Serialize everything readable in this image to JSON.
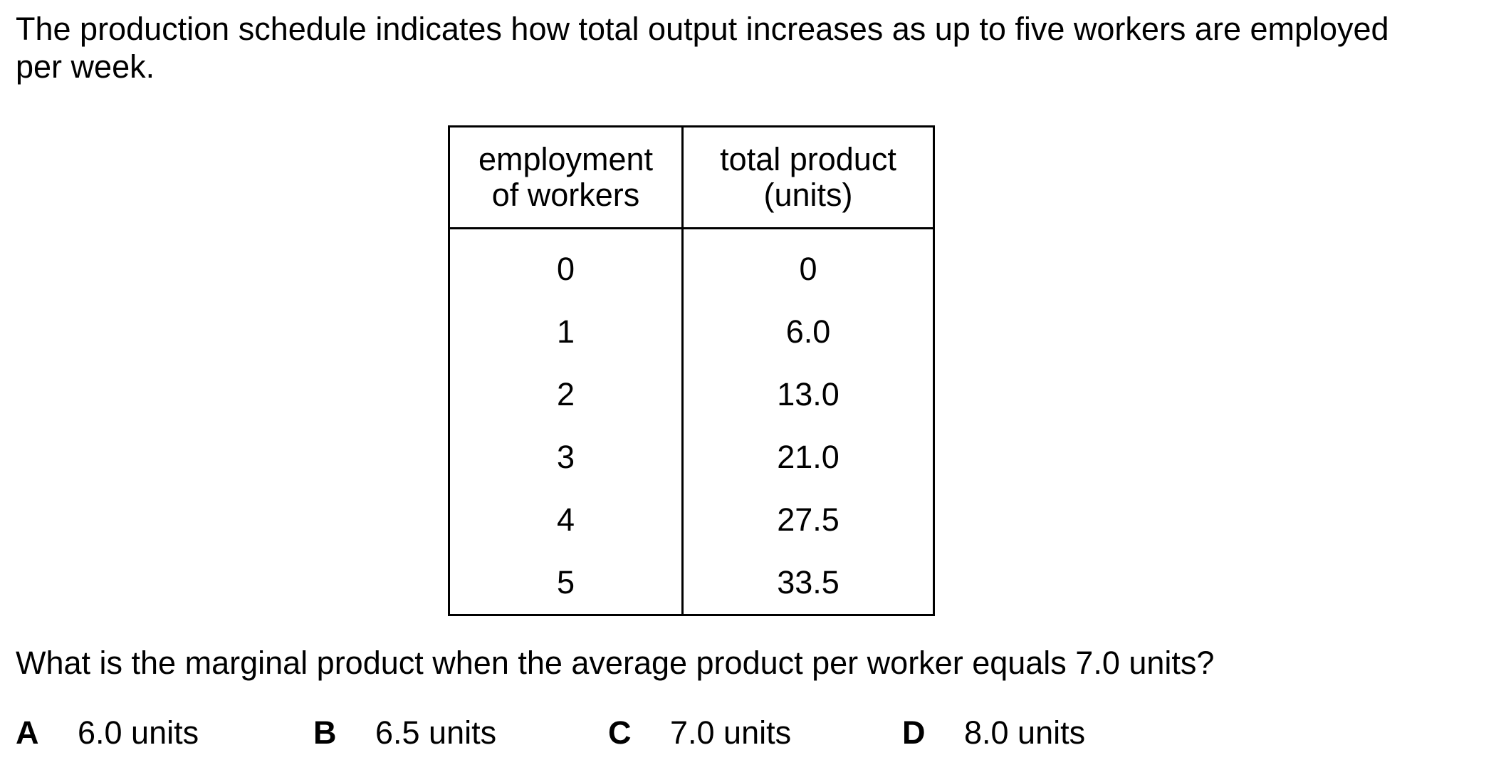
{
  "intro": {
    "line1": "The production schedule indicates how total output increases as up to five workers are employed",
    "line2": "per week."
  },
  "table": {
    "headers": {
      "employment_line1": "employment",
      "employment_line2": "of workers",
      "product_line1": "total product",
      "product_line2": "(units)"
    },
    "rows": [
      {
        "workers": "0",
        "total": "0"
      },
      {
        "workers": "1",
        "total": "6.0"
      },
      {
        "workers": "2",
        "total": "13.0"
      },
      {
        "workers": "3",
        "total": "21.0"
      },
      {
        "workers": "4",
        "total": "27.5"
      },
      {
        "workers": "5",
        "total": "33.5"
      }
    ]
  },
  "question": "What is the marginal product when the average product per worker equals 7.0 units?",
  "options": [
    {
      "letter": "A",
      "text": "6.0 units"
    },
    {
      "letter": "B",
      "text": "6.5 units"
    },
    {
      "letter": "C",
      "text": "7.0 units"
    },
    {
      "letter": "D",
      "text": "8.0 units"
    }
  ]
}
